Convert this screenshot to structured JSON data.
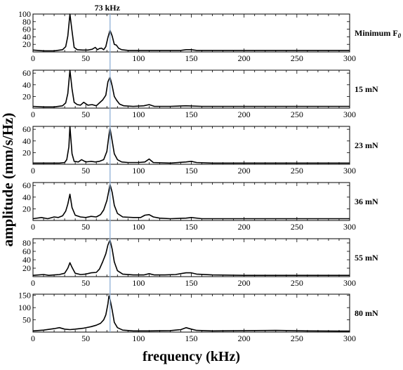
{
  "chart_data": {
    "type": "line",
    "xlabel": "frequency (kHz)",
    "ylabel": "amplitude (mm/s/Hz)",
    "xlim": [
      0,
      300
    ],
    "x_ticks": [
      0,
      50,
      100,
      150,
      200,
      250,
      300
    ],
    "grid": false,
    "annotation": {
      "text": "73 kHz",
      "x": 73
    },
    "panels": [
      {
        "name": "Minimum F",
        "name_subscript": "0",
        "ylim": [
          0,
          100
        ],
        "y_ticks": [
          20,
          40,
          60,
          80,
          100
        ],
        "points": [
          [
            0,
            5
          ],
          [
            10,
            3
          ],
          [
            20,
            3
          ],
          [
            28,
            6
          ],
          [
            31,
            14
          ],
          [
            33,
            42
          ],
          [
            35,
            100
          ],
          [
            37,
            55
          ],
          [
            39,
            12
          ],
          [
            42,
            6
          ],
          [
            47,
            5
          ],
          [
            52,
            5
          ],
          [
            56,
            7
          ],
          [
            59,
            12
          ],
          [
            61,
            6
          ],
          [
            63,
            9
          ],
          [
            65,
            10
          ],
          [
            67,
            6
          ],
          [
            69,
            14
          ],
          [
            71,
            38
          ],
          [
            73,
            57
          ],
          [
            75,
            42
          ],
          [
            77,
            20
          ],
          [
            79,
            18
          ],
          [
            81,
            10
          ],
          [
            84,
            6
          ],
          [
            90,
            4
          ],
          [
            100,
            4
          ],
          [
            110,
            4
          ],
          [
            120,
            4
          ],
          [
            130,
            4
          ],
          [
            140,
            4
          ],
          [
            145,
            6
          ],
          [
            150,
            6
          ],
          [
            155,
            4
          ],
          [
            170,
            4
          ],
          [
            200,
            4
          ],
          [
            230,
            4
          ],
          [
            260,
            4
          ],
          [
            300,
            4
          ]
        ]
      },
      {
        "name": "15 mN",
        "ylim": [
          0,
          65
        ],
        "y_ticks": [
          20,
          40,
          60
        ],
        "points": [
          [
            0,
            3
          ],
          [
            10,
            2
          ],
          [
            20,
            2
          ],
          [
            28,
            4
          ],
          [
            31,
            9
          ],
          [
            33,
            25
          ],
          [
            35,
            65
          ],
          [
            37,
            33
          ],
          [
            39,
            10
          ],
          [
            42,
            6
          ],
          [
            45,
            5
          ],
          [
            48,
            10
          ],
          [
            52,
            5
          ],
          [
            56,
            6
          ],
          [
            60,
            4
          ],
          [
            63,
            9
          ],
          [
            66,
            14
          ],
          [
            69,
            22
          ],
          [
            71,
            45
          ],
          [
            73,
            53
          ],
          [
            75,
            38
          ],
          [
            77,
            20
          ],
          [
            79,
            14
          ],
          [
            82,
            7
          ],
          [
            86,
            4
          ],
          [
            95,
            3
          ],
          [
            105,
            4
          ],
          [
            110,
            6
          ],
          [
            115,
            3
          ],
          [
            130,
            3
          ],
          [
            145,
            4
          ],
          [
            160,
            3
          ],
          [
            200,
            3
          ],
          [
            240,
            3
          ],
          [
            270,
            3
          ],
          [
            300,
            3
          ]
        ]
      },
      {
        "name": "23 mN",
        "ylim": [
          0,
          65
        ],
        "y_ticks": [
          20,
          40,
          60
        ],
        "points": [
          [
            0,
            2
          ],
          [
            15,
            2
          ],
          [
            25,
            2
          ],
          [
            30,
            3
          ],
          [
            32,
            8
          ],
          [
            34,
            30
          ],
          [
            35,
            65
          ],
          [
            37,
            18
          ],
          [
            39,
            5
          ],
          [
            43,
            4
          ],
          [
            46,
            8
          ],
          [
            50,
            4
          ],
          [
            55,
            5
          ],
          [
            59,
            4
          ],
          [
            63,
            5
          ],
          [
            67,
            8
          ],
          [
            70,
            22
          ],
          [
            72,
            50
          ],
          [
            73,
            62
          ],
          [
            75,
            40
          ],
          [
            77,
            18
          ],
          [
            80,
            8
          ],
          [
            84,
            4
          ],
          [
            90,
            3
          ],
          [
            100,
            3
          ],
          [
            106,
            4
          ],
          [
            110,
            9
          ],
          [
            114,
            3
          ],
          [
            130,
            2
          ],
          [
            145,
            4
          ],
          [
            150,
            5
          ],
          [
            155,
            3
          ],
          [
            170,
            2
          ],
          [
            200,
            2
          ],
          [
            250,
            2
          ],
          [
            300,
            2
          ]
        ]
      },
      {
        "name": "36 mN",
        "ylim": [
          0,
          65
        ],
        "y_ticks": [
          20,
          40,
          60
        ],
        "points": [
          [
            0,
            3
          ],
          [
            8,
            5
          ],
          [
            14,
            3
          ],
          [
            20,
            6
          ],
          [
            24,
            5
          ],
          [
            28,
            8
          ],
          [
            31,
            16
          ],
          [
            33,
            28
          ],
          [
            35,
            45
          ],
          [
            37,
            22
          ],
          [
            40,
            9
          ],
          [
            45,
            6
          ],
          [
            50,
            5
          ],
          [
            55,
            7
          ],
          [
            60,
            6
          ],
          [
            64,
            10
          ],
          [
            67,
            18
          ],
          [
            70,
            34
          ],
          [
            72,
            52
          ],
          [
            73,
            62
          ],
          [
            75,
            48
          ],
          [
            77,
            26
          ],
          [
            80,
            12
          ],
          [
            85,
            6
          ],
          [
            95,
            5
          ],
          [
            102,
            5
          ],
          [
            106,
            9
          ],
          [
            110,
            10
          ],
          [
            114,
            6
          ],
          [
            120,
            4
          ],
          [
            130,
            3
          ],
          [
            145,
            4
          ],
          [
            150,
            5
          ],
          [
            160,
            3
          ],
          [
            200,
            3
          ],
          [
            240,
            3
          ],
          [
            280,
            3
          ],
          [
            300,
            3
          ]
        ]
      },
      {
        "name": "55 mN",
        "ylim": [
          0,
          90
        ],
        "y_ticks": [
          20,
          40,
          60,
          80
        ],
        "points": [
          [
            0,
            3
          ],
          [
            10,
            5
          ],
          [
            15,
            3
          ],
          [
            20,
            4
          ],
          [
            25,
            5
          ],
          [
            30,
            8
          ],
          [
            33,
            20
          ],
          [
            35,
            33
          ],
          [
            37,
            22
          ],
          [
            40,
            8
          ],
          [
            45,
            5
          ],
          [
            50,
            6
          ],
          [
            55,
            9
          ],
          [
            60,
            10
          ],
          [
            63,
            18
          ],
          [
            66,
            35
          ],
          [
            69,
            54
          ],
          [
            71,
            75
          ],
          [
            73,
            87
          ],
          [
            75,
            65
          ],
          [
            77,
            35
          ],
          [
            80,
            14
          ],
          [
            85,
            6
          ],
          [
            95,
            4
          ],
          [
            105,
            4
          ],
          [
            110,
            7
          ],
          [
            115,
            4
          ],
          [
            125,
            4
          ],
          [
            135,
            5
          ],
          [
            145,
            9
          ],
          [
            150,
            9
          ],
          [
            155,
            6
          ],
          [
            170,
            4
          ],
          [
            200,
            3
          ],
          [
            240,
            3
          ],
          [
            280,
            3
          ],
          [
            300,
            3
          ]
        ]
      },
      {
        "name": "80 mN",
        "ylim": [
          0,
          155
        ],
        "y_ticks": [
          50,
          100,
          150
        ],
        "points": [
          [
            0,
            5
          ],
          [
            10,
            8
          ],
          [
            20,
            14
          ],
          [
            25,
            18
          ],
          [
            30,
            12
          ],
          [
            35,
            10
          ],
          [
            40,
            12
          ],
          [
            48,
            16
          ],
          [
            55,
            22
          ],
          [
            60,
            28
          ],
          [
            64,
            36
          ],
          [
            67,
            50
          ],
          [
            69,
            70
          ],
          [
            71,
            115
          ],
          [
            72,
            148
          ],
          [
            73,
            135
          ],
          [
            75,
            90
          ],
          [
            77,
            40
          ],
          [
            80,
            18
          ],
          [
            85,
            8
          ],
          [
            95,
            5
          ],
          [
            110,
            5
          ],
          [
            130,
            6
          ],
          [
            140,
            10
          ],
          [
            145,
            18
          ],
          [
            150,
            12
          ],
          [
            155,
            7
          ],
          [
            170,
            5
          ],
          [
            200,
            6
          ],
          [
            230,
            7
          ],
          [
            260,
            5
          ],
          [
            290,
            4
          ],
          [
            300,
            4
          ]
        ]
      }
    ]
  }
}
